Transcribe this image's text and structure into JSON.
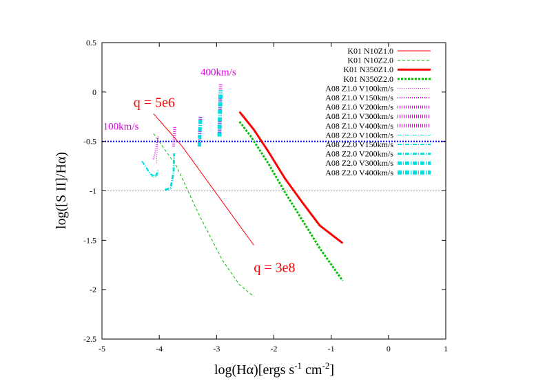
{
  "chart_data": {
    "type": "line",
    "xlabel": "log(Hα)[ergs s",
    "xlabel_sup1": "-1",
    "xlabel_mid": " cm",
    "xlabel_sup2": "-2",
    "xlabel_end": "]",
    "ylabel": "log([S II]/Hα)",
    "xlim": [
      -5,
      1
    ],
    "ylim": [
      -2.5,
      0.5
    ],
    "xticks": [
      "-5",
      "-4",
      "-3",
      "-2",
      "-1",
      "0",
      "1"
    ],
    "yticks": [
      "0.5",
      "0",
      "-0.5",
      "-1",
      "-1.5",
      "-2",
      "-2.5"
    ],
    "grid": false,
    "legend_position": "top-right",
    "hlines": [
      {
        "y": -0.5,
        "color": "#0000ff",
        "style": "dotted"
      },
      {
        "y": -1.0,
        "color": "#a0a0a0",
        "style": "dotted"
      }
    ],
    "series": [
      {
        "name": "K01 N10Z1.0",
        "color": "#ff0000",
        "width": 1,
        "dash": "",
        "x": [
          -4.1,
          -3.6,
          -3.1,
          -2.6,
          -2.35
        ],
        "y": [
          -0.22,
          -0.55,
          -0.95,
          -1.35,
          -1.55
        ]
      },
      {
        "name": "K01 N10Z2.0",
        "color": "#00c000",
        "width": 1,
        "dash": "4,3",
        "x": [
          -4.1,
          -3.7,
          -3.3,
          -2.9,
          -2.6,
          -2.35
        ],
        "y": [
          -0.42,
          -0.75,
          -1.25,
          -1.7,
          -1.95,
          -2.07
        ]
      },
      {
        "name": "K01 N350Z1.0",
        "color": "#ff0000",
        "width": 3,
        "dash": "",
        "x": [
          -2.6,
          -2.35,
          -2.1,
          -1.8,
          -1.5,
          -1.2,
          -0.8
        ],
        "y": [
          -0.2,
          -0.38,
          -0.6,
          -0.88,
          -1.12,
          -1.35,
          -1.53
        ]
      },
      {
        "name": "K01 N350Z2.0",
        "color": "#00c000",
        "width": 3,
        "dash": "3,2",
        "x": [
          -2.6,
          -2.4,
          -2.1,
          -1.8,
          -1.5,
          -1.2,
          -0.8
        ],
        "y": [
          -0.3,
          -0.45,
          -0.72,
          -1.02,
          -1.3,
          -1.58,
          -1.91
        ]
      },
      {
        "name": "A08 Z1.0 V100km/s",
        "color": "#e000e0",
        "width": 1,
        "dash": "1,2",
        "x": [
          -4.05,
          -4.02
        ],
        "y": [
          -0.72,
          -0.45
        ]
      },
      {
        "name": "A08 Z1.0 V150km/s",
        "color": "#e000e0",
        "width": 2,
        "dash": "1,2",
        "x": [
          -4.1,
          -4.05,
          -4.02
        ],
        "y": [
          -0.68,
          -0.55,
          -0.45
        ]
      },
      {
        "name": "A08 Z1.0 V200km/s",
        "color": "#e000e0",
        "width": 4,
        "dash": "1,2",
        "x": [
          -3.75,
          -3.74,
          -3.73
        ],
        "y": [
          -0.55,
          -0.45,
          -0.35
        ]
      },
      {
        "name": "A08 Z1.0  V300km/s",
        "color": "#e000e0",
        "width": 5,
        "dash": "1,2",
        "x": [
          -3.3,
          -3.29,
          -3.28
        ],
        "y": [
          -0.55,
          -0.35,
          -0.25
        ]
      },
      {
        "name": "A08 Z1.0 V400km/s",
        "color": "#e000e0",
        "width": 5,
        "dash": "1,2",
        "x": [
          -2.95,
          -2.94,
          -2.93
        ],
        "y": [
          -0.45,
          -0.2,
          0.08
        ]
      },
      {
        "name": "A08 Z2.0 V100km/s",
        "color": "#00e0e0",
        "width": 1,
        "dash": "6,2,1,2",
        "x": [
          -4.3,
          -4.2,
          -4.1,
          -4.05
        ],
        "y": [
          -0.7,
          -0.8,
          -0.87,
          -0.82
        ]
      },
      {
        "name": "A08 Z2.0 V150km/s",
        "color": "#00e0e0",
        "width": 2,
        "dash": "6,2,1,2",
        "x": [
          -4.3,
          -4.15,
          -4.05,
          -4.02
        ],
        "y": [
          -0.7,
          -0.83,
          -0.86,
          -0.78
        ]
      },
      {
        "name": "A08 Z2.0 V200km/s",
        "color": "#00e0e0",
        "width": 3,
        "dash": "6,2,1,2",
        "x": [
          -3.9,
          -3.8,
          -3.75,
          -3.74
        ],
        "y": [
          -0.99,
          -0.97,
          -0.8,
          -0.62
        ]
      },
      {
        "name": "A08 Z2.0 V300km/s",
        "color": "#00e0e0",
        "width": 5,
        "dash": "6,2,1,2",
        "x": [
          -3.3,
          -3.29,
          -3.28
        ],
        "y": [
          -0.55,
          -0.4,
          -0.25
        ]
      },
      {
        "name": "A08 Z2.0 V400km/s",
        "color": "#00e0e0",
        "width": 6,
        "dash": "6,2,1,2",
        "x": [
          -2.95,
          -2.94,
          -2.93
        ],
        "y": [
          -0.45,
          -0.2,
          0.02
        ]
      }
    ],
    "annotations": [
      {
        "text": "q = 5e6",
        "x": -4.45,
        "y": -0.15,
        "color": "#ff0000",
        "size": 20
      },
      {
        "text": "q = 3e8",
        "x": -2.35,
        "y": -1.82,
        "color": "#ff0000",
        "size": 20
      },
      {
        "text": "100km/s",
        "x": -4.98,
        "y": -0.38,
        "color": "#e000e0",
        "size": 15
      },
      {
        "text": "400km/s",
        "x": -3.28,
        "y": 0.17,
        "color": "#e000e0",
        "size": 15
      }
    ]
  }
}
